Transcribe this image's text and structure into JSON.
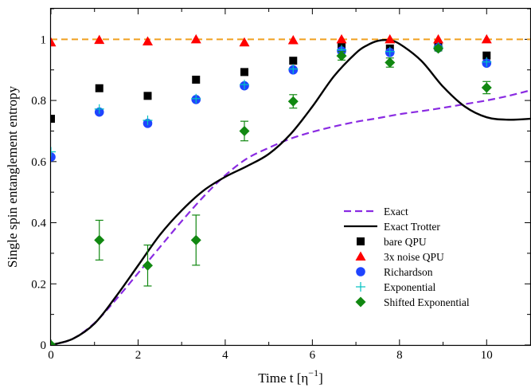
{
  "chart_data": {
    "type": "scatter",
    "xlabel": "Time t [η",
    "xlabel_sup": "−1",
    "xlabel_end": "]",
    "ylabel": "Single spin entanglement entropy",
    "xlim": [
      0,
      11
    ],
    "ylim": [
      0,
      1.1
    ],
    "xticks": [
      0,
      2,
      4,
      6,
      8,
      10
    ],
    "xtick_labels": [
      "0",
      "2",
      "4",
      "6",
      "8",
      "10"
    ],
    "yticks": [
      0,
      0.2,
      0.4,
      0.6,
      0.8,
      1
    ],
    "ytick_labels": [
      "0",
      "0.2",
      "0.4",
      "0.6",
      "0.8",
      "1"
    ],
    "grid": false,
    "legend_position": "lower-right",
    "reference_line": {
      "y": 1,
      "color": "#f0a020",
      "style": "dashed"
    },
    "series": [
      {
        "name": "Exact",
        "kind": "line",
        "color": "#8a2be2",
        "dash": true,
        "x": [
          0,
          0.5,
          1,
          1.5,
          2,
          2.5,
          3,
          3.5,
          4,
          4.5,
          5,
          5.5,
          6,
          6.5,
          7,
          7.5,
          8,
          8.5,
          9,
          9.5,
          10,
          10.5,
          11
        ],
        "y": [
          0,
          0.02,
          0.072,
          0.15,
          0.235,
          0.32,
          0.405,
          0.485,
          0.555,
          0.61,
          0.645,
          0.675,
          0.697,
          0.715,
          0.73,
          0.742,
          0.755,
          0.765,
          0.776,
          0.788,
          0.8,
          0.815,
          0.833
        ]
      },
      {
        "name": "Exact Trotter",
        "kind": "line",
        "color": "#000000",
        "dash": false,
        "x": [
          0,
          0.5,
          1,
          1.5,
          2,
          2.5,
          3,
          3.5,
          4,
          4.5,
          5,
          5.5,
          6,
          6.5,
          7,
          7.25,
          7.5,
          7.75,
          8,
          8.5,
          9,
          9.5,
          10,
          10.5,
          11
        ],
        "y": [
          0,
          0.02,
          0.07,
          0.16,
          0.26,
          0.36,
          0.44,
          0.505,
          0.55,
          0.585,
          0.625,
          0.69,
          0.78,
          0.88,
          0.955,
          0.98,
          0.995,
          0.997,
          0.985,
          0.93,
          0.845,
          0.78,
          0.745,
          0.737,
          0.74
        ]
      },
      {
        "name": "bare QPU",
        "kind": "marker",
        "marker": "square",
        "color": "#000000",
        "x": [
          0,
          1.11,
          2.22,
          3.33,
          4.44,
          5.56,
          6.67,
          7.78,
          8.89,
          10
        ],
        "y": [
          0.74,
          0.84,
          0.815,
          0.868,
          0.893,
          0.93,
          0.975,
          0.97,
          0.98,
          0.947
        ]
      },
      {
        "name": "3x noise QPU",
        "kind": "marker",
        "marker": "triangle",
        "color": "#ff0000",
        "x": [
          0,
          1.11,
          2.22,
          3.33,
          4.44,
          5.56,
          6.67,
          7.78,
          8.89,
          10
        ],
        "y": [
          0.99,
          0.998,
          0.993,
          1.0,
          0.99,
          0.997,
          1.0,
          1.0,
          1.0,
          1.0
        ]
      },
      {
        "name": "Richardson",
        "kind": "marker",
        "marker": "circle",
        "color": "#1f44ff",
        "x": [
          0,
          1.11,
          2.22,
          3.33,
          4.44,
          5.56,
          6.67,
          7.78,
          8.89,
          10
        ],
        "y": [
          0.615,
          0.762,
          0.725,
          0.803,
          0.848,
          0.9,
          0.962,
          0.957,
          0.972,
          0.922
        ]
      },
      {
        "name": "Exponential",
        "kind": "marker",
        "marker": "plus",
        "color": "#00c0c0",
        "x": [
          0,
          1.11,
          2.22,
          3.33,
          4.44,
          5.56,
          6.67,
          7.78,
          8.89,
          10
        ],
        "y": [
          0.632,
          0.772,
          0.735,
          0.806,
          0.852,
          0.903,
          0.966,
          0.96,
          0.975,
          0.926
        ]
      },
      {
        "name": "Shifted Exponential",
        "kind": "marker",
        "marker": "diamond",
        "color": "#118811",
        "x": [
          0,
          1.11,
          2.22,
          3.33,
          4.44,
          5.56,
          6.67,
          7.78,
          8.89,
          10
        ],
        "y": [
          0,
          0.343,
          0.26,
          0.343,
          0.7,
          0.797,
          0.946,
          0.924,
          0.97,
          0.842
        ],
        "err": [
          0,
          0.065,
          0.067,
          0.082,
          0.032,
          0.022,
          0.014,
          0.015,
          0.008,
          0.02
        ]
      }
    ]
  }
}
